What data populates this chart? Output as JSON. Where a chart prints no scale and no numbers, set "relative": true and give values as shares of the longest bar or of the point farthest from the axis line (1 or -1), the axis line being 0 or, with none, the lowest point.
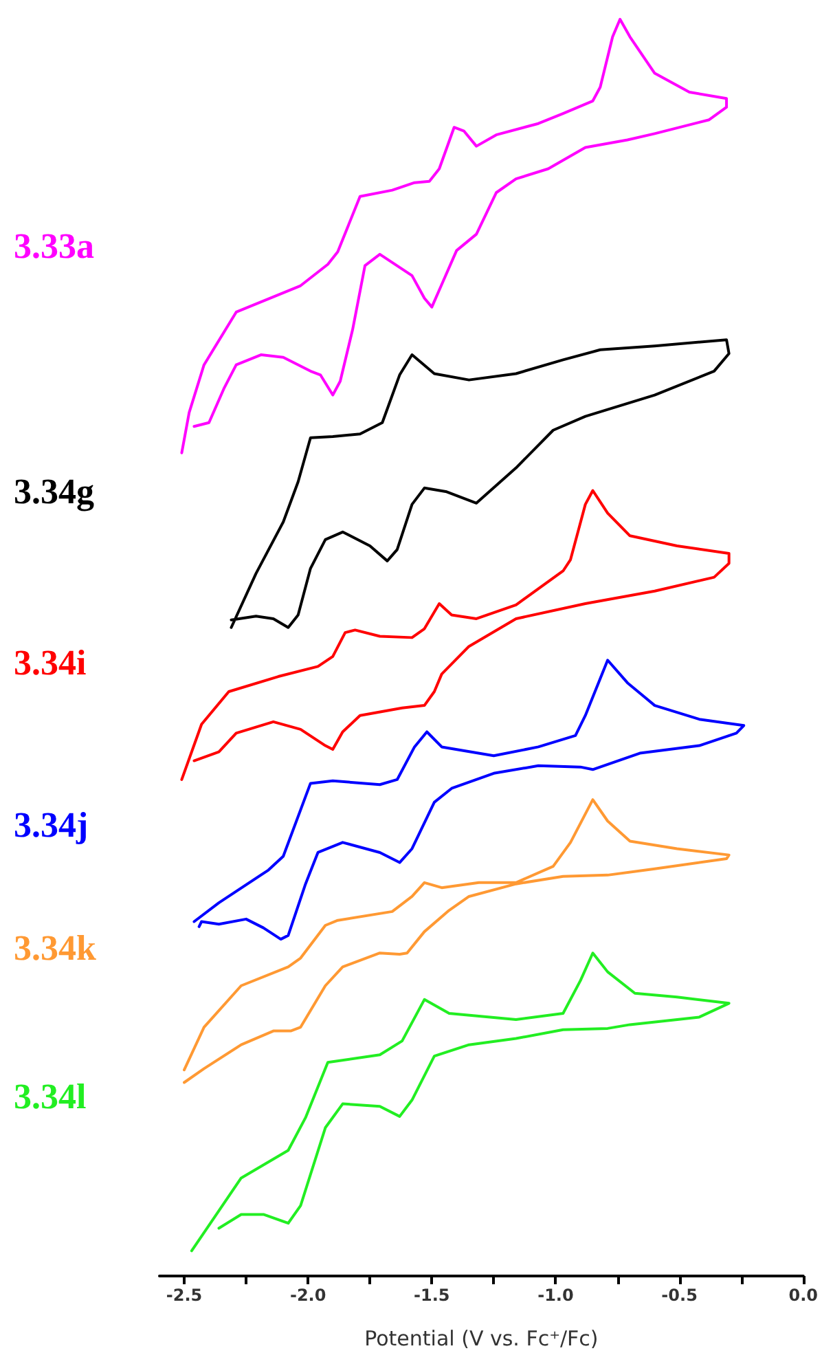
{
  "chart_data": {
    "type": "line",
    "relative": true,
    "xlabel": "Potential (V vs. Fc⁺/Fc)",
    "xlim": [
      -2.6,
      0
    ],
    "xticks": [
      {
        "value": -2.5,
        "label": "-2.5"
      },
      {
        "value": -2.25,
        "label": null
      },
      {
        "value": -2.0,
        "label": "-2.0"
      },
      {
        "value": -1.75,
        "label": null
      },
      {
        "value": -1.5,
        "label": "-1.5"
      },
      {
        "value": -1.25,
        "label": null
      },
      {
        "value": -1.0,
        "label": "-1.0"
      },
      {
        "value": -0.75,
        "label": null
      },
      {
        "value": -0.5,
        "label": "-0.5"
      },
      {
        "value": -0.25,
        "label": null
      },
      {
        "value": 0,
        "label": "0.0"
      }
    ],
    "grid": false,
    "legend": false,
    "marker": "none",
    "line_style": "solid",
    "tick_labels": "x",
    "series": [
      {
        "name": "3.33a",
        "color": "#ff00ff",
        "x": [
          -2.51,
          -2.48,
          -2.42,
          -2.29,
          -2.03,
          -1.92,
          -1.88,
          -1.79,
          -1.66,
          -1.57,
          -1.51,
          -1.47,
          -1.41,
          -1.37,
          -1.32,
          -1.24,
          -1.07,
          -0.97,
          -0.85,
          -0.82,
          -0.77,
          -0.74,
          -0.7,
          -0.6,
          -0.46,
          -0.31,
          -0.31,
          -0.38,
          -0.6,
          -0.71,
          -0.88,
          -1.03,
          -1.16,
          -1.24,
          -1.32,
          -1.4,
          -1.46,
          -1.5,
          -1.53,
          -1.58,
          -1.71,
          -1.77,
          -1.82,
          -1.87,
          -1.9,
          -1.95,
          -1.99,
          -2.1,
          -2.19,
          -2.29,
          -2.34,
          -2.4,
          -2.46
        ],
        "values": [
          0.655,
          0.687,
          0.725,
          0.767,
          0.788,
          0.805,
          0.815,
          0.859,
          0.864,
          0.87,
          0.871,
          0.881,
          0.914,
          0.911,
          0.899,
          0.908,
          0.917,
          0.925,
          0.935,
          0.946,
          0.986,
          1.0,
          0.986,
          0.957,
          0.942,
          0.937,
          0.93,
          0.92,
          0.909,
          0.904,
          0.898,
          0.881,
          0.873,
          0.862,
          0.829,
          0.816,
          0.789,
          0.771,
          0.778,
          0.796,
          0.813,
          0.804,
          0.753,
          0.712,
          0.701,
          0.717,
          0.72,
          0.731,
          0.733,
          0.725,
          0.706,
          0.679,
          0.676
        ]
      },
      {
        "name": "3.34g",
        "color": "#000000",
        "x": [
          -2.31,
          -2.21,
          -2.1,
          -2.04,
          -1.99,
          -1.9,
          -1.79,
          -1.7,
          -1.63,
          -1.58,
          -1.49,
          -1.35,
          -1.16,
          -0.97,
          -0.82,
          -0.6,
          -0.31,
          -0.3,
          -0.36,
          -0.6,
          -0.88,
          -1.01,
          -1.16,
          -1.32,
          -1.44,
          -1.53,
          -1.58,
          -1.64,
          -1.68,
          -1.75,
          -1.86,
          -1.93,
          -1.99,
          -2.04,
          -2.08,
          -2.14,
          -2.21,
          -2.31
        ],
        "values": [
          0.516,
          0.559,
          0.6,
          0.632,
          0.667,
          0.668,
          0.67,
          0.679,
          0.717,
          0.733,
          0.718,
          0.713,
          0.718,
          0.729,
          0.737,
          0.74,
          0.745,
          0.734,
          0.72,
          0.701,
          0.684,
          0.673,
          0.643,
          0.615,
          0.624,
          0.627,
          0.614,
          0.578,
          0.569,
          0.581,
          0.592,
          0.586,
          0.563,
          0.526,
          0.516,
          0.523,
          0.525,
          0.522
        ]
      },
      {
        "name": "3.34i",
        "color": "#ff0000",
        "x": [
          -2.51,
          -2.43,
          -2.32,
          -2.12,
          -1.96,
          -1.9,
          -1.85,
          -1.81,
          -1.71,
          -1.58,
          -1.53,
          -1.47,
          -1.42,
          -1.32,
          -1.16,
          -0.97,
          -0.94,
          -0.88,
          -0.85,
          -0.79,
          -0.7,
          -0.51,
          -0.3,
          -0.3,
          -0.36,
          -0.6,
          -0.88,
          -1.16,
          -1.35,
          -1.46,
          -1.49,
          -1.53,
          -1.62,
          -1.79,
          -1.86,
          -1.9,
          -1.93,
          -2.03,
          -2.14,
          -2.29,
          -2.36,
          -2.46
        ],
        "values": [
          0.395,
          0.439,
          0.465,
          0.477,
          0.485,
          0.493,
          0.512,
          0.514,
          0.509,
          0.508,
          0.515,
          0.535,
          0.526,
          0.523,
          0.534,
          0.561,
          0.57,
          0.614,
          0.625,
          0.607,
          0.589,
          0.581,
          0.575,
          0.567,
          0.556,
          0.545,
          0.535,
          0.523,
          0.501,
          0.479,
          0.465,
          0.454,
          0.452,
          0.446,
          0.433,
          0.419,
          0.422,
          0.435,
          0.441,
          0.432,
          0.417,
          0.41
        ]
      },
      {
        "name": "3.34j",
        "color": "#0000ff",
        "x": [
          -2.46,
          -2.36,
          -2.16,
          -2.1,
          -1.99,
          -1.9,
          -1.71,
          -1.64,
          -1.57,
          -1.52,
          -1.46,
          -1.25,
          -1.07,
          -0.92,
          -0.88,
          -0.79,
          -0.71,
          -0.6,
          -0.42,
          -0.24,
          -0.27,
          -0.42,
          -0.66,
          -0.85,
          -0.9,
          -1.07,
          -1.25,
          -1.42,
          -1.49,
          -1.58,
          -1.63,
          -1.71,
          -1.86,
          -1.96,
          -2.01,
          -2.08,
          -2.11,
          -2.18,
          -2.25,
          -2.36,
          -2.43,
          -2.44
        ],
        "values": [
          0.282,
          0.297,
          0.323,
          0.334,
          0.392,
          0.394,
          0.391,
          0.395,
          0.421,
          0.433,
          0.421,
          0.414,
          0.421,
          0.43,
          0.446,
          0.49,
          0.472,
          0.454,
          0.443,
          0.438,
          0.432,
          0.422,
          0.416,
          0.403,
          0.405,
          0.406,
          0.4,
          0.388,
          0.377,
          0.34,
          0.329,
          0.337,
          0.345,
          0.337,
          0.312,
          0.271,
          0.268,
          0.277,
          0.284,
          0.28,
          0.282,
          0.278
        ]
      },
      {
        "name": "3.34k",
        "color": "#ff9933",
        "x": [
          -2.5,
          -2.42,
          -2.27,
          -2.08,
          -2.03,
          -1.93,
          -1.88,
          -1.66,
          -1.58,
          -1.53,
          -1.46,
          -1.31,
          -1.16,
          -1.01,
          -0.94,
          -0.85,
          -0.79,
          -0.7,
          -0.51,
          -0.3,
          -0.31,
          -0.6,
          -0.79,
          -0.97,
          -1.16,
          -1.35,
          -1.43,
          -1.53,
          -1.6,
          -1.63,
          -1.71,
          -1.86,
          -1.93,
          -2.03,
          -2.07,
          -2.14,
          -2.27,
          -2.42,
          -2.5
        ],
        "values": [
          0.164,
          0.198,
          0.231,
          0.246,
          0.253,
          0.279,
          0.283,
          0.29,
          0.302,
          0.313,
          0.309,
          0.313,
          0.313,
          0.326,
          0.345,
          0.379,
          0.362,
          0.346,
          0.34,
          0.335,
          0.332,
          0.324,
          0.319,
          0.318,
          0.312,
          0.302,
          0.291,
          0.274,
          0.257,
          0.256,
          0.257,
          0.246,
          0.231,
          0.198,
          0.195,
          0.195,
          0.184,
          0.165,
          0.154
        ]
      },
      {
        "name": "3.34l",
        "color": "#22ee22",
        "x": [
          -2.47,
          -2.27,
          -2.08,
          -2.01,
          -1.92,
          -1.71,
          -1.62,
          -1.53,
          -1.43,
          -1.16,
          -0.97,
          -0.9,
          -0.85,
          -0.79,
          -0.68,
          -0.51,
          -0.3,
          -0.42,
          -0.7,
          -0.79,
          -0.97,
          -1.16,
          -1.35,
          -1.49,
          -1.58,
          -1.63,
          -1.71,
          -1.86,
          -1.93,
          -2.03,
          -2.08,
          -2.18,
          -2.27,
          -2.36
        ],
        "values": [
          0.02,
          0.078,
          0.1,
          0.126,
          0.17,
          0.176,
          0.187,
          0.22,
          0.209,
          0.204,
          0.209,
          0.235,
          0.257,
          0.242,
          0.225,
          0.222,
          0.217,
          0.206,
          0.2,
          0.197,
          0.196,
          0.189,
          0.184,
          0.175,
          0.14,
          0.127,
          0.135,
          0.137,
          0.118,
          0.056,
          0.042,
          0.049,
          0.049,
          0.038
        ]
      }
    ]
  }
}
